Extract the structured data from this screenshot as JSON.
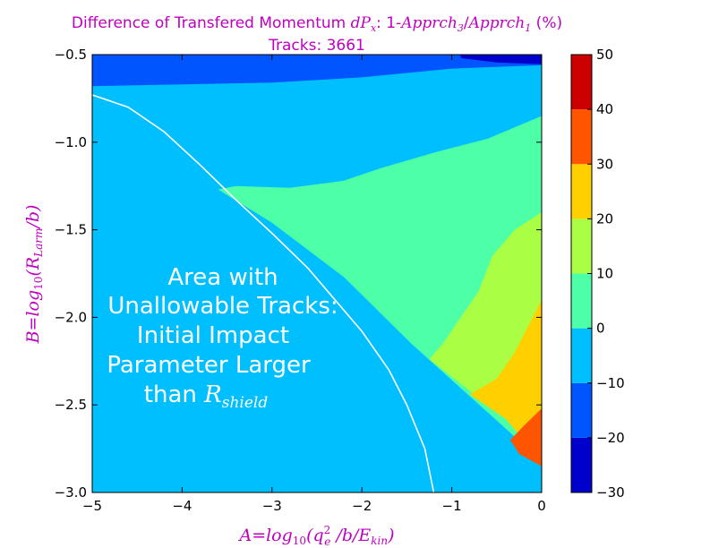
{
  "chart_data": {
    "type": "heatmap",
    "title_parts": [
      "Difference of Transfered Momentum ",
      "dP",
      "x",
      ": 1-",
      "Apprch",
      "3",
      "/",
      "Apprch",
      "1",
      " (%)"
    ],
    "subtitle": "Tracks: 3661",
    "xlabel_parts": [
      "A",
      "=",
      "log",
      "10",
      "(q",
      "2",
      "e",
      " /b/E",
      "kin",
      ")"
    ],
    "ylabel_parts": [
      "B",
      "=",
      "log",
      "10",
      "(R",
      "Larm",
      "/b)"
    ],
    "xlim": [
      -5,
      0
    ],
    "ylim": [
      -3.0,
      -0.5
    ],
    "xticks": [
      -5,
      -4,
      -3,
      -2,
      -1,
      0
    ],
    "xtick_labels": [
      "−5",
      "−4",
      "−3",
      "−2",
      "−1",
      "0"
    ],
    "yticks": [
      -0.5,
      -1.0,
      -1.5,
      -2.0,
      -2.5,
      -3.0
    ],
    "ytick_labels": [
      "−0.5",
      "−1.0",
      "−1.5",
      "−2.0",
      "−2.5",
      "−3.0"
    ],
    "colorbar": {
      "levels": [
        -30,
        -20,
        -10,
        0,
        10,
        20,
        30,
        40,
        50
      ],
      "tick_labels": [
        "−30",
        "−20",
        "−10",
        "0",
        "10",
        "20",
        "30",
        "40",
        "50"
      ],
      "colors": [
        "#0000cd",
        "#0055ff",
        "#00bfff",
        "#4dffa6",
        "#aaff44",
        "#ffd000",
        "#ff5500",
        "#cc0000"
      ]
    },
    "regions": [
      {
        "level_band": [
          -20,
          -10
        ],
        "color": "#0055ff",
        "points": [
          [
            -5,
            -0.5
          ],
          [
            0,
            -0.5
          ],
          [
            0,
            -0.56
          ],
          [
            -1,
            -0.58
          ],
          [
            -2,
            -0.63
          ],
          [
            -3,
            -0.66
          ],
          [
            -4,
            -0.67
          ],
          [
            -5,
            -0.68
          ]
        ]
      },
      {
        "level_band": [
          -30,
          -20
        ],
        "color": "#0000cd",
        "points": [
          [
            -0.9,
            -0.5
          ],
          [
            0,
            -0.5
          ],
          [
            0,
            -0.555
          ],
          [
            -0.5,
            -0.545
          ],
          [
            -0.9,
            -0.52
          ]
        ]
      },
      {
        "level_band": [
          0,
          10
        ],
        "color": "#4dffa6",
        "points": [
          [
            -3.4,
            -1.25
          ],
          [
            -2.8,
            -1.26
          ],
          [
            -2.2,
            -1.22
          ],
          [
            -1.8,
            -1.15
          ],
          [
            -1.2,
            -1.06
          ],
          [
            -0.6,
            -0.98
          ],
          [
            0,
            -0.85
          ],
          [
            0,
            -2.82
          ],
          [
            -1.45,
            -2.15
          ],
          [
            -2.2,
            -1.77
          ],
          [
            -3.0,
            -1.46
          ],
          [
            -3.6,
            -1.27
          ]
        ]
      },
      {
        "level_band": [
          10,
          20
        ],
        "color": "#aaff44",
        "points": [
          [
            0,
            -1.4
          ],
          [
            -0.3,
            -1.5
          ],
          [
            -0.55,
            -1.65
          ],
          [
            -0.7,
            -1.85
          ],
          [
            -0.9,
            -2.0
          ],
          [
            -1.1,
            -2.15
          ],
          [
            -1.25,
            -2.24
          ],
          [
            -0.4,
            -2.58
          ],
          [
            0,
            -2.82
          ]
        ]
      },
      {
        "level_band": [
          20,
          30
        ],
        "color": "#ffd000",
        "points": [
          [
            0,
            -1.9
          ],
          [
            -0.15,
            -2.05
          ],
          [
            -0.3,
            -2.2
          ],
          [
            -0.5,
            -2.35
          ],
          [
            -0.8,
            -2.44
          ],
          [
            -0.4,
            -2.58
          ],
          [
            0,
            -2.82
          ]
        ]
      },
      {
        "level_band": [
          30,
          40
        ],
        "color": "#ff5500",
        "points": [
          [
            0,
            -2.52
          ],
          [
            -0.2,
            -2.62
          ],
          [
            -0.35,
            -2.7
          ],
          [
            -0.25,
            -2.78
          ],
          [
            0,
            -2.85
          ]
        ]
      }
    ],
    "boundary_curve": [
      [
        -5,
        -0.73
      ],
      [
        -4.6,
        -0.8
      ],
      [
        -4.2,
        -0.94
      ],
      [
        -3.8,
        -1.13
      ],
      [
        -3.4,
        -1.33
      ],
      [
        -3.0,
        -1.52
      ],
      [
        -2.6,
        -1.72
      ],
      [
        -2.3,
        -1.9
      ],
      [
        -2.0,
        -2.08
      ],
      [
        -1.7,
        -2.3
      ],
      [
        -1.5,
        -2.5
      ],
      [
        -1.3,
        -2.75
      ],
      [
        -1.2,
        -3.0
      ]
    ],
    "annotation_lines": [
      "Area with",
      "Unallowable Tracks:",
      "Initial Impact",
      "Parameter Larger"
    ],
    "annotation_last_prefix": "than ",
    "annotation_last_math": "R",
    "annotation_last_math_sub": "shield"
  },
  "colors": {
    "title": "#bf00bf",
    "background_band": "#00bfff",
    "curve": "#ffffff"
  }
}
